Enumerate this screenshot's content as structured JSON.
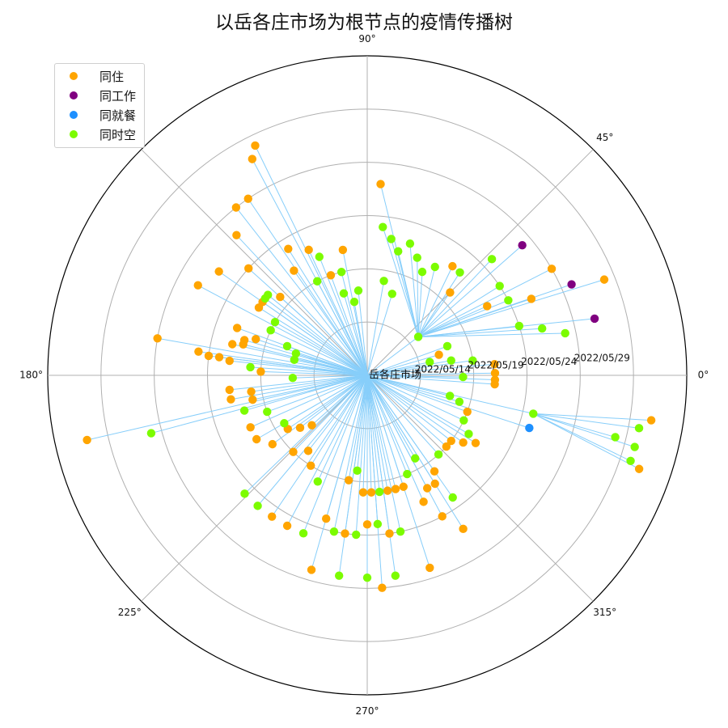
{
  "chart_data": {
    "type": "scatter",
    "projection": "polar",
    "title": "以岳各庄市场为根节点的疫情传播树",
    "root_label": "岳各庄市场",
    "angle_tick_labels": [
      "0°",
      "45°",
      "90°",
      "180°",
      "225°",
      "270°",
      "315°"
    ],
    "radial_tick_labels": [
      "2022/05/14",
      "2022/05/19",
      "2022/05/24",
      "2022/05/29"
    ],
    "grid": true,
    "edge_color": "#87cefa",
    "legend": {
      "placement": "upper-left",
      "items": [
        {
          "label": "同住",
          "color": "#ffa500"
        },
        {
          "label": "同工作",
          "color": "#800080"
        },
        {
          "label": "同就餐",
          "color": "#1e90ff"
        },
        {
          "label": "同时空",
          "color": "#7cfc00"
        }
      ]
    },
    "r_unit": "days after root (0 = center, grid rings at 2022/05/14, 05/19, 05/24, 05/29)",
    "nodes": [
      {
        "id": "A",
        "parent": "root",
        "angle": 37,
        "r": 6,
        "type": "同时空"
      },
      {
        "id": "A1",
        "parent": "A",
        "angle": 52,
        "r": 13,
        "type": "同住"
      },
      {
        "id": "A2",
        "parent": "A",
        "angle": 58,
        "r": 12,
        "type": "同时空"
      },
      {
        "id": "A3",
        "parent": "A",
        "angle": 62,
        "r": 11,
        "type": "同时空"
      },
      {
        "id": "A4",
        "parent": "A",
        "angle": 67,
        "r": 12,
        "type": "同时空"
      },
      {
        "id": "A5",
        "parent": "A",
        "angle": 72,
        "r": 13,
        "type": "同时空"
      },
      {
        "id": "A6",
        "parent": "A",
        "angle": 76,
        "r": 12,
        "type": "同时空"
      },
      {
        "id": "A7",
        "parent": "A",
        "angle": 80,
        "r": 13,
        "type": "同时空"
      },
      {
        "id": "A8",
        "parent": "A",
        "angle": 84,
        "r": 14,
        "type": "同时空"
      },
      {
        "id": "A9",
        "parent": "A",
        "angle": 86,
        "r": 18,
        "type": "同住"
      },
      {
        "id": "A10",
        "parent": "A",
        "angle": 45,
        "r": 11,
        "type": "同住"
      },
      {
        "id": "A11",
        "parent": "A",
        "angle": 48,
        "r": 13,
        "type": "同时空"
      },
      {
        "id": "A12",
        "parent": "A",
        "angle": 43,
        "r": 16,
        "type": "同时空"
      },
      {
        "id": "A13",
        "parent": "A",
        "angle": 40,
        "r": 19,
        "type": "同工作"
      },
      {
        "id": "A14",
        "parent": "A",
        "angle": 34,
        "r": 15,
        "type": "同时空"
      },
      {
        "id": "A15",
        "parent": "A",
        "angle": 30,
        "r": 13,
        "type": "同住"
      },
      {
        "id": "A16",
        "parent": "A",
        "angle": 28,
        "r": 15,
        "type": "同时空"
      },
      {
        "id": "A17",
        "parent": "A",
        "angle": 25,
        "r": 17,
        "type": "同住"
      },
      {
        "id": "A18",
        "parent": "A",
        "angle": 30,
        "r": 20,
        "type": "同住"
      },
      {
        "id": "A19",
        "parent": "A",
        "angle": 24,
        "r": 21,
        "type": "同工作"
      },
      {
        "id": "A20",
        "parent": "A",
        "angle": 18,
        "r": 15,
        "type": "同时空"
      },
      {
        "id": "A21",
        "parent": "A",
        "angle": 15,
        "r": 17,
        "type": "同时空"
      },
      {
        "id": "A22",
        "parent": "A",
        "angle": 12,
        "r": 19,
        "type": "同时空"
      },
      {
        "id": "A23",
        "parent": "A",
        "angle": 14,
        "r": 22,
        "type": "同工作"
      },
      {
        "id": "A24",
        "parent": "A",
        "angle": 22,
        "r": 24,
        "type": "同住"
      },
      {
        "id": "B",
        "parent": "root",
        "angle": 73,
        "r": 8,
        "type": "同时空"
      },
      {
        "id": "B1",
        "parent": "root",
        "angle": 80,
        "r": 9,
        "type": "同时空"
      },
      {
        "id": "C1",
        "parent": "root",
        "angle": 12,
        "r": 6,
        "type": "同时空"
      },
      {
        "id": "C2",
        "parent": "root",
        "angle": 16,
        "r": 7,
        "type": "同住"
      },
      {
        "id": "C3",
        "parent": "root",
        "angle": 20,
        "r": 8,
        "type": "同时空"
      },
      {
        "id": "C4",
        "parent": "root",
        "angle": 10,
        "r": 8,
        "type": "同时空"
      },
      {
        "id": "C5",
        "parent": "root",
        "angle": 8,
        "r": 10,
        "type": "同时空"
      },
      {
        "id": "C6",
        "parent": "root",
        "angle": 5,
        "r": 12,
        "type": "同住"
      },
      {
        "id": "C7",
        "parent": "root",
        "angle": 1,
        "r": 12,
        "type": "同住"
      },
      {
        "id": "C8",
        "parent": "root",
        "angle": -2,
        "r": 12,
        "type": "同住"
      },
      {
        "id": "C9",
        "parent": "root",
        "angle": -4,
        "r": 12,
        "type": "同住"
      },
      {
        "id": "C10",
        "parent": "root",
        "angle": -1,
        "r": 9,
        "type": "同时空"
      },
      {
        "id": "D",
        "parent": "root",
        "angle": -13,
        "r": 16,
        "type": "同时空"
      },
      {
        "id": "D1",
        "parent": "D",
        "angle": -14,
        "r": 24,
        "type": "同时空"
      },
      {
        "id": "D2",
        "parent": "D",
        "angle": -11,
        "r": 26,
        "type": "同时空"
      },
      {
        "id": "D3",
        "parent": "D",
        "angle": -9,
        "r": 27,
        "type": "同住"
      },
      {
        "id": "D4",
        "parent": "D",
        "angle": -15,
        "r": 26,
        "type": "同时空"
      },
      {
        "id": "D5",
        "parent": "D",
        "angle": -18,
        "r": 26,
        "type": "同时空"
      },
      {
        "id": "D6",
        "parent": "D",
        "angle": -19,
        "r": 27,
        "type": "同住"
      },
      {
        "id": "D7",
        "parent": "root",
        "angle": -18,
        "r": 16,
        "type": "同就餐"
      },
      {
        "id": "E1",
        "parent": "root",
        "angle": -14,
        "r": 8,
        "type": "同时空"
      },
      {
        "id": "E2",
        "parent": "root",
        "angle": -16,
        "r": 9,
        "type": "同时空"
      },
      {
        "id": "E3",
        "parent": "root",
        "angle": -20,
        "r": 10,
        "type": "同住"
      },
      {
        "id": "E4",
        "parent": "root",
        "angle": -25,
        "r": 10,
        "type": "同时空"
      },
      {
        "id": "E5",
        "parent": "root",
        "angle": -30,
        "r": 11,
        "type": "同时空"
      },
      {
        "id": "E6",
        "parent": "root",
        "angle": -32,
        "r": 12,
        "type": "同住"
      },
      {
        "id": "E7",
        "parent": "root",
        "angle": -35,
        "r": 11,
        "type": "同住"
      },
      {
        "id": "E8",
        "parent": "root",
        "angle": -38,
        "r": 10,
        "type": "同住"
      },
      {
        "id": "E9",
        "parent": "root",
        "angle": -42,
        "r": 10,
        "type": "同住"
      },
      {
        "id": "E10",
        "parent": "root",
        "angle": -48,
        "r": 10,
        "type": "同时空"
      },
      {
        "id": "E11",
        "parent": "root",
        "angle": -55,
        "r": 11,
        "type": "同住"
      },
      {
        "id": "E12",
        "parent": "root",
        "angle": -58,
        "r": 12,
        "type": "同住"
      },
      {
        "id": "E13",
        "parent": "root",
        "angle": -62,
        "r": 12,
        "type": "同住"
      },
      {
        "id": "E14",
        "parent": "root",
        "angle": -66,
        "r": 13,
        "type": "同住"
      },
      {
        "id": "E15",
        "parent": "root",
        "angle": -62,
        "r": 15,
        "type": "同住"
      },
      {
        "id": "E16",
        "parent": "root",
        "angle": -58,
        "r": 17,
        "type": "同住"
      },
      {
        "id": "E17",
        "parent": "root",
        "angle": -55,
        "r": 14,
        "type": "同时空"
      },
      {
        "id": "E18",
        "parent": "root",
        "angle": -60,
        "r": 9,
        "type": "同时空"
      },
      {
        "id": "E19",
        "parent": "root",
        "angle": -68,
        "r": 10,
        "type": "同时空"
      },
      {
        "id": "E20",
        "parent": "root",
        "angle": -72,
        "r": 11,
        "type": "同住"
      },
      {
        "id": "E21",
        "parent": "root",
        "angle": -76,
        "r": 11,
        "type": "同住"
      },
      {
        "id": "E22",
        "parent": "root",
        "angle": -80,
        "r": 11,
        "type": "同住"
      },
      {
        "id": "E23",
        "parent": "root",
        "angle": -84,
        "r": 11,
        "type": "同时空"
      },
      {
        "id": "E24",
        "parent": "root",
        "angle": -88,
        "r": 11,
        "type": "同住"
      },
      {
        "id": "E25",
        "parent": "root",
        "angle": -92,
        "r": 11,
        "type": "同住"
      },
      {
        "id": "E26",
        "parent": "root",
        "angle": -96,
        "r": 9,
        "type": "同时空"
      },
      {
        "id": "E27",
        "parent": "root",
        "angle": -100,
        "r": 10,
        "type": "同住"
      },
      {
        "id": "E28",
        "parent": "root",
        "angle": -78,
        "r": 15,
        "type": "同时空"
      },
      {
        "id": "E29",
        "parent": "root",
        "angle": -82,
        "r": 15,
        "type": "同住"
      },
      {
        "id": "E30",
        "parent": "root",
        "angle": -86,
        "r": 14,
        "type": "同时空"
      },
      {
        "id": "E31",
        "parent": "root",
        "angle": -90,
        "r": 14,
        "type": "同住"
      },
      {
        "id": "E32",
        "parent": "root",
        "angle": -94,
        "r": 15,
        "type": "同时空"
      },
      {
        "id": "E33",
        "parent": "root",
        "angle": -98,
        "r": 15,
        "type": "同住"
      },
      {
        "id": "E34",
        "parent": "root",
        "angle": -102,
        "r": 15,
        "type": "同时空"
      },
      {
        "id": "E35",
        "parent": "root",
        "angle": -106,
        "r": 14,
        "type": "同住"
      },
      {
        "id": "E36",
        "parent": "root",
        "angle": -72,
        "r": 19,
        "type": "同住"
      },
      {
        "id": "E37",
        "parent": "root",
        "angle": -82,
        "r": 19,
        "type": "同时空"
      },
      {
        "id": "E38",
        "parent": "root",
        "angle": -86,
        "r": 20,
        "type": "同住"
      },
      {
        "id": "E39",
        "parent": "root",
        "angle": -90,
        "r": 19,
        "type": "同时空"
      },
      {
        "id": "E40",
        "parent": "root",
        "angle": -98,
        "r": 19,
        "type": "同时空"
      },
      {
        "id": "E41",
        "parent": "root",
        "angle": -106,
        "r": 19,
        "type": "同住"
      },
      {
        "id": "E42",
        "parent": "root",
        "angle": -112,
        "r": 16,
        "type": "同时空"
      },
      {
        "id": "E43",
        "parent": "root",
        "angle": -118,
        "r": 16,
        "type": "同住"
      },
      {
        "id": "E44",
        "parent": "root",
        "angle": -124,
        "r": 16,
        "type": "同住"
      },
      {
        "id": "E45",
        "parent": "root",
        "angle": -130,
        "r": 16,
        "type": "同时空"
      },
      {
        "id": "E46",
        "parent": "root",
        "angle": -136,
        "r": 16,
        "type": "同时空"
      },
      {
        "id": "E47",
        "parent": "root",
        "angle": -115,
        "r": 11,
        "type": "同时空"
      },
      {
        "id": "E48",
        "parent": "root",
        "angle": -122,
        "r": 10,
        "type": "同住"
      },
      {
        "id": "E49",
        "parent": "root",
        "angle": -128,
        "r": 9,
        "type": "同住"
      },
      {
        "id": "E50",
        "parent": "root",
        "angle": -134,
        "r": 10,
        "type": "同住"
      },
      {
        "id": "E51",
        "parent": "root",
        "angle": -138,
        "r": 7,
        "type": "同住"
      },
      {
        "id": "E52",
        "parent": "root",
        "angle": -142,
        "r": 8,
        "type": "同住"
      },
      {
        "id": "E53",
        "parent": "root",
        "angle": -146,
        "r": 9,
        "type": "同住"
      },
      {
        "id": "E54",
        "parent": "root",
        "angle": -150,
        "r": 9,
        "type": "同时空"
      },
      {
        "id": "E55",
        "parent": "root",
        "angle": -144,
        "r": 11,
        "type": "同住"
      },
      {
        "id": "E56",
        "parent": "root",
        "angle": -150,
        "r": 12,
        "type": "同住"
      },
      {
        "id": "E57",
        "parent": "root",
        "angle": -156,
        "r": 12,
        "type": "同住"
      },
      {
        "id": "E58",
        "parent": "root",
        "angle": -160,
        "r": 10,
        "type": "同时空"
      },
      {
        "id": "E59",
        "parent": "root",
        "angle": -164,
        "r": 12,
        "type": "同时空"
      },
      {
        "id": "E60",
        "parent": "root",
        "angle": -168,
        "r": 11,
        "type": "同住"
      },
      {
        "id": "E61",
        "parent": "root",
        "angle": -170,
        "r": 13,
        "type": "同住"
      },
      {
        "id": "E62",
        "parent": "root",
        "angle": -172,
        "r": 11,
        "type": "同住"
      },
      {
        "id": "E63",
        "parent": "root",
        "angle": -174,
        "r": 13,
        "type": "同住"
      },
      {
        "id": "E64",
        "parent": "root",
        "angle": -165,
        "r": 21,
        "type": "同时空"
      },
      {
        "id": "E65",
        "parent": "root",
        "angle": -167,
        "r": 27,
        "type": "同住"
      },
      {
        "id": "F1",
        "parent": "root",
        "angle": -178,
        "r": 7,
        "type": "同时空"
      },
      {
        "id": "F2",
        "parent": "root",
        "angle": 178,
        "r": 10,
        "type": "同住"
      },
      {
        "id": "F3",
        "parent": "root",
        "angle": 176,
        "r": 11,
        "type": "同时空"
      },
      {
        "id": "F4",
        "parent": "root",
        "angle": 174,
        "r": 13,
        "type": "同住"
      },
      {
        "id": "F5",
        "parent": "root",
        "angle": 173,
        "r": 14,
        "type": "同住"
      },
      {
        "id": "F6",
        "parent": "root",
        "angle": 173,
        "r": 15,
        "type": "同住"
      },
      {
        "id": "F7",
        "parent": "root",
        "angle": 172,
        "r": 16,
        "type": "同住"
      },
      {
        "id": "F8",
        "parent": "root",
        "angle": 170,
        "r": 20,
        "type": "同住"
      },
      {
        "id": "F9",
        "parent": "root",
        "angle": 168,
        "r": 7,
        "type": "同时空"
      },
      {
        "id": "F10",
        "parent": "root",
        "angle": 163,
        "r": 7,
        "type": "同时空"
      },
      {
        "id": "F11",
        "parent": "root",
        "angle": 160,
        "r": 8,
        "type": "同时空"
      },
      {
        "id": "F12",
        "parent": "root",
        "angle": 162,
        "r": 11,
        "type": "同住"
      },
      {
        "id": "F13",
        "parent": "root",
        "angle": 164,
        "r": 12,
        "type": "同住"
      },
      {
        "id": "F14",
        "parent": "root",
        "angle": 166,
        "r": 12,
        "type": "同住"
      },
      {
        "id": "F15",
        "parent": "root",
        "angle": 167,
        "r": 13,
        "type": "同住"
      },
      {
        "id": "F16",
        "parent": "root",
        "angle": 155,
        "r": 10,
        "type": "同时空"
      },
      {
        "id": "F17",
        "parent": "root",
        "angle": 150,
        "r": 10,
        "type": "同时空"
      },
      {
        "id": "F18",
        "parent": "root",
        "angle": 148,
        "r": 12,
        "type": "同住"
      },
      {
        "id": "F19",
        "parent": "root",
        "angle": 145,
        "r": 12,
        "type": "同住"
      },
      {
        "id": "F20",
        "parent": "root",
        "angle": 143,
        "r": 12,
        "type": "同时空"
      },
      {
        "id": "F21",
        "parent": "root",
        "angle": 141,
        "r": 12,
        "type": "同时空"
      },
      {
        "id": "F22",
        "parent": "root",
        "angle": 138,
        "r": 11,
        "type": "同住"
      },
      {
        "id": "F23",
        "parent": "root",
        "angle": 138,
        "r": 15,
        "type": "同住"
      },
      {
        "id": "F24",
        "parent": "root",
        "angle": 133,
        "r": 18,
        "type": "同住"
      },
      {
        "id": "F25",
        "parent": "root",
        "angle": 128,
        "r": 20,
        "type": "同住"
      },
      {
        "id": "F26",
        "parent": "root",
        "angle": 124,
        "r": 20,
        "type": "同住"
      },
      {
        "id": "F27",
        "parent": "root",
        "angle": 118,
        "r": 23,
        "type": "同住"
      },
      {
        "id": "F28",
        "parent": "root",
        "angle": 116,
        "r": 24,
        "type": "同住"
      },
      {
        "id": "F29",
        "parent": "root",
        "angle": 122,
        "r": 14,
        "type": "同住"
      },
      {
        "id": "F30",
        "parent": "root",
        "angle": 115,
        "r": 13,
        "type": "同住"
      },
      {
        "id": "F31",
        "parent": "root",
        "angle": 110,
        "r": 10,
        "type": "同住"
      },
      {
        "id": "F32",
        "parent": "root",
        "angle": 112,
        "r": 12,
        "type": "同时空"
      },
      {
        "id": "F33",
        "parent": "root",
        "angle": 106,
        "r": 8,
        "type": "同时空"
      },
      {
        "id": "F34",
        "parent": "root",
        "angle": 100,
        "r": 7,
        "type": "同时空"
      },
      {
        "id": "F35",
        "parent": "root",
        "angle": 96,
        "r": 8,
        "type": "同时空"
      },
      {
        "id": "F36",
        "parent": "root",
        "angle": 101,
        "r": 12,
        "type": "同住"
      },
      {
        "id": "F37",
        "parent": "root",
        "angle": 104,
        "r": 10,
        "type": "同时空"
      },
      {
        "id": "F38",
        "parent": "root",
        "angle": 118,
        "r": 10,
        "type": "同时空"
      },
      {
        "id": "F39",
        "parent": "root",
        "angle": 125,
        "r": 12,
        "type": "同住"
      },
      {
        "id": "F40",
        "parent": "root",
        "angle": 152,
        "r": 18,
        "type": "同住"
      },
      {
        "id": "F41",
        "parent": "root",
        "angle": 145,
        "r": 17,
        "type": "同住"
      },
      {
        "id": "F42",
        "parent": "root",
        "angle": 160,
        "r": 13,
        "type": "同住"
      }
    ]
  }
}
